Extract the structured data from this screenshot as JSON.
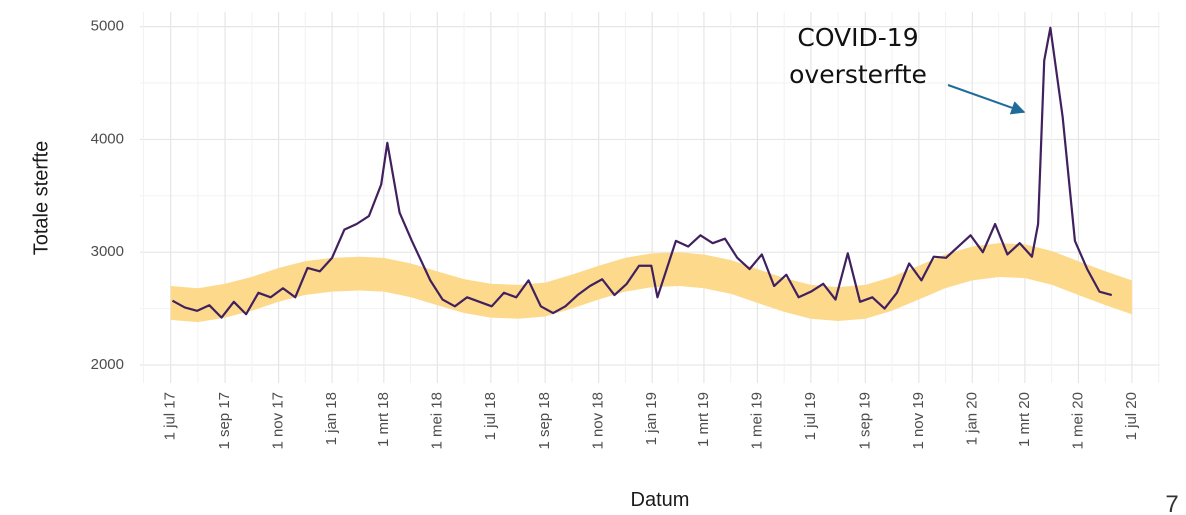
{
  "chart_data": {
    "type": "line",
    "x_label": "Datum",
    "y_label": "Totale sterfte",
    "annotation": [
      "COVID-19",
      "oversterfte"
    ],
    "xlim": [
      "2017-05-27",
      "2020-08-02"
    ],
    "ylim": [
      1840,
      5130
    ],
    "yticks": [
      2000,
      3000,
      4000,
      5000
    ],
    "xticks": [
      {
        "value": "2017-07-01",
        "label": "1 jul 17"
      },
      {
        "value": "2017-09-01",
        "label": "1 sep 17"
      },
      {
        "value": "2017-11-01",
        "label": "1 nov 17"
      },
      {
        "value": "2018-01-01",
        "label": "1 jan 18"
      },
      {
        "value": "2018-03-01",
        "label": "1 mrt 18"
      },
      {
        "value": "2018-05-01",
        "label": "1 mei 18"
      },
      {
        "value": "2018-07-01",
        "label": "1 jul 18"
      },
      {
        "value": "2018-09-01",
        "label": "1 sep 18"
      },
      {
        "value": "2018-11-01",
        "label": "1 nov 18"
      },
      {
        "value": "2019-01-01",
        "label": "1 jan 19"
      },
      {
        "value": "2019-03-01",
        "label": "1 mrt 19"
      },
      {
        "value": "2019-05-01",
        "label": "1 mei 19"
      },
      {
        "value": "2019-07-01",
        "label": "1 jul 19"
      },
      {
        "value": "2019-09-01",
        "label": "1 sep 19"
      },
      {
        "value": "2019-11-01",
        "label": "1 nov 19"
      },
      {
        "value": "2020-01-01",
        "label": "1 jan 20"
      },
      {
        "value": "2020-03-01",
        "label": "1 mrt 20"
      },
      {
        "value": "2020-05-01",
        "label": "1 mei 20"
      },
      {
        "value": "2020-07-01",
        "label": "1 jul 20"
      }
    ],
    "grid": true,
    "line_color": "#41205f",
    "x": [
      "2017-07-03",
      "2017-07-17",
      "2017-07-31",
      "2017-08-14",
      "2017-08-28",
      "2017-09-11",
      "2017-09-25",
      "2017-10-09",
      "2017-10-23",
      "2017-11-06",
      "2017-11-20",
      "2017-12-04",
      "2017-12-18",
      "2018-01-01",
      "2018-01-15",
      "2018-01-29",
      "2018-02-12",
      "2018-02-26",
      "2018-03-05",
      "2018-03-19",
      "2018-04-02",
      "2018-04-23",
      "2018-05-07",
      "2018-05-21",
      "2018-06-04",
      "2018-06-18",
      "2018-07-02",
      "2018-07-16",
      "2018-07-30",
      "2018-08-13",
      "2018-08-27",
      "2018-09-10",
      "2018-09-24",
      "2018-10-08",
      "2018-10-22",
      "2018-11-05",
      "2018-11-19",
      "2018-12-03",
      "2018-12-17",
      "2018-12-31",
      "2019-01-07",
      "2019-01-28",
      "2019-02-11",
      "2019-02-25",
      "2019-03-11",
      "2019-03-25",
      "2019-04-08",
      "2019-04-22",
      "2019-05-06",
      "2019-05-20",
      "2019-06-03",
      "2019-06-17",
      "2019-07-01",
      "2019-07-15",
      "2019-07-29",
      "2019-08-12",
      "2019-08-26",
      "2019-09-09",
      "2019-09-23",
      "2019-10-07",
      "2019-10-21",
      "2019-11-04",
      "2019-11-18",
      "2019-12-02",
      "2019-12-16",
      "2019-12-30",
      "2020-01-13",
      "2020-01-27",
      "2020-02-10",
      "2020-02-24",
      "2020-03-09",
      "2020-03-16",
      "2020-03-23",
      "2020-03-30",
      "2020-04-13",
      "2020-04-27",
      "2020-05-11",
      "2020-05-25",
      "2020-06-08"
    ],
    "values": [
      2570,
      2510,
      2480,
      2530,
      2420,
      2560,
      2450,
      2640,
      2600,
      2680,
      2600,
      2860,
      2830,
      2950,
      3200,
      3250,
      3320,
      3600,
      3970,
      3350,
      3100,
      2750,
      2580,
      2520,
      2600,
      2560,
      2520,
      2640,
      2600,
      2750,
      2520,
      2460,
      2520,
      2620,
      2700,
      2760,
      2620,
      2720,
      2880,
      2880,
      2600,
      3100,
      3050,
      3150,
      3080,
      3120,
      2950,
      2850,
      2980,
      2700,
      2800,
      2600,
      2650,
      2720,
      2580,
      2990,
      2560,
      2600,
      2500,
      2640,
      2900,
      2750,
      2960,
      2950,
      3050,
      3150,
      3000,
      3250,
      2980,
      3080,
      2960,
      3250,
      4700,
      4990,
      4200,
      3100,
      2850,
      2650,
      2620
    ],
    "band": {
      "color": "#fdd98c",
      "x": [
        "2017-07-01",
        "2017-08-01",
        "2017-09-01",
        "2017-10-01",
        "2017-11-01",
        "2017-12-01",
        "2018-01-01",
        "2018-02-01",
        "2018-03-01",
        "2018-04-01",
        "2018-05-01",
        "2018-06-01",
        "2018-07-01",
        "2018-08-01",
        "2018-09-01",
        "2018-10-01",
        "2018-11-01",
        "2018-12-01",
        "2019-01-01",
        "2019-02-01",
        "2019-03-01",
        "2019-04-01",
        "2019-05-01",
        "2019-06-01",
        "2019-07-01",
        "2019-08-01",
        "2019-09-01",
        "2019-10-01",
        "2019-11-01",
        "2019-12-01",
        "2020-01-01",
        "2020-02-01",
        "2020-03-01",
        "2020-04-01",
        "2020-05-01",
        "2020-06-01",
        "2020-07-01"
      ],
      "lower": [
        2400,
        2380,
        2420,
        2480,
        2560,
        2620,
        2650,
        2660,
        2650,
        2600,
        2530,
        2460,
        2420,
        2410,
        2430,
        2500,
        2580,
        2650,
        2690,
        2700,
        2680,
        2630,
        2550,
        2470,
        2410,
        2390,
        2410,
        2480,
        2580,
        2680,
        2750,
        2780,
        2770,
        2710,
        2620,
        2530,
        2450
      ],
      "upper": [
        2700,
        2680,
        2720,
        2780,
        2860,
        2920,
        2950,
        2960,
        2950,
        2900,
        2830,
        2760,
        2720,
        2710,
        2730,
        2800,
        2880,
        2950,
        2990,
        3000,
        2980,
        2930,
        2850,
        2770,
        2710,
        2690,
        2710,
        2780,
        2880,
        2980,
        3050,
        3080,
        3070,
        3010,
        2920,
        2830,
        2750
      ]
    }
  },
  "page_number": "7"
}
